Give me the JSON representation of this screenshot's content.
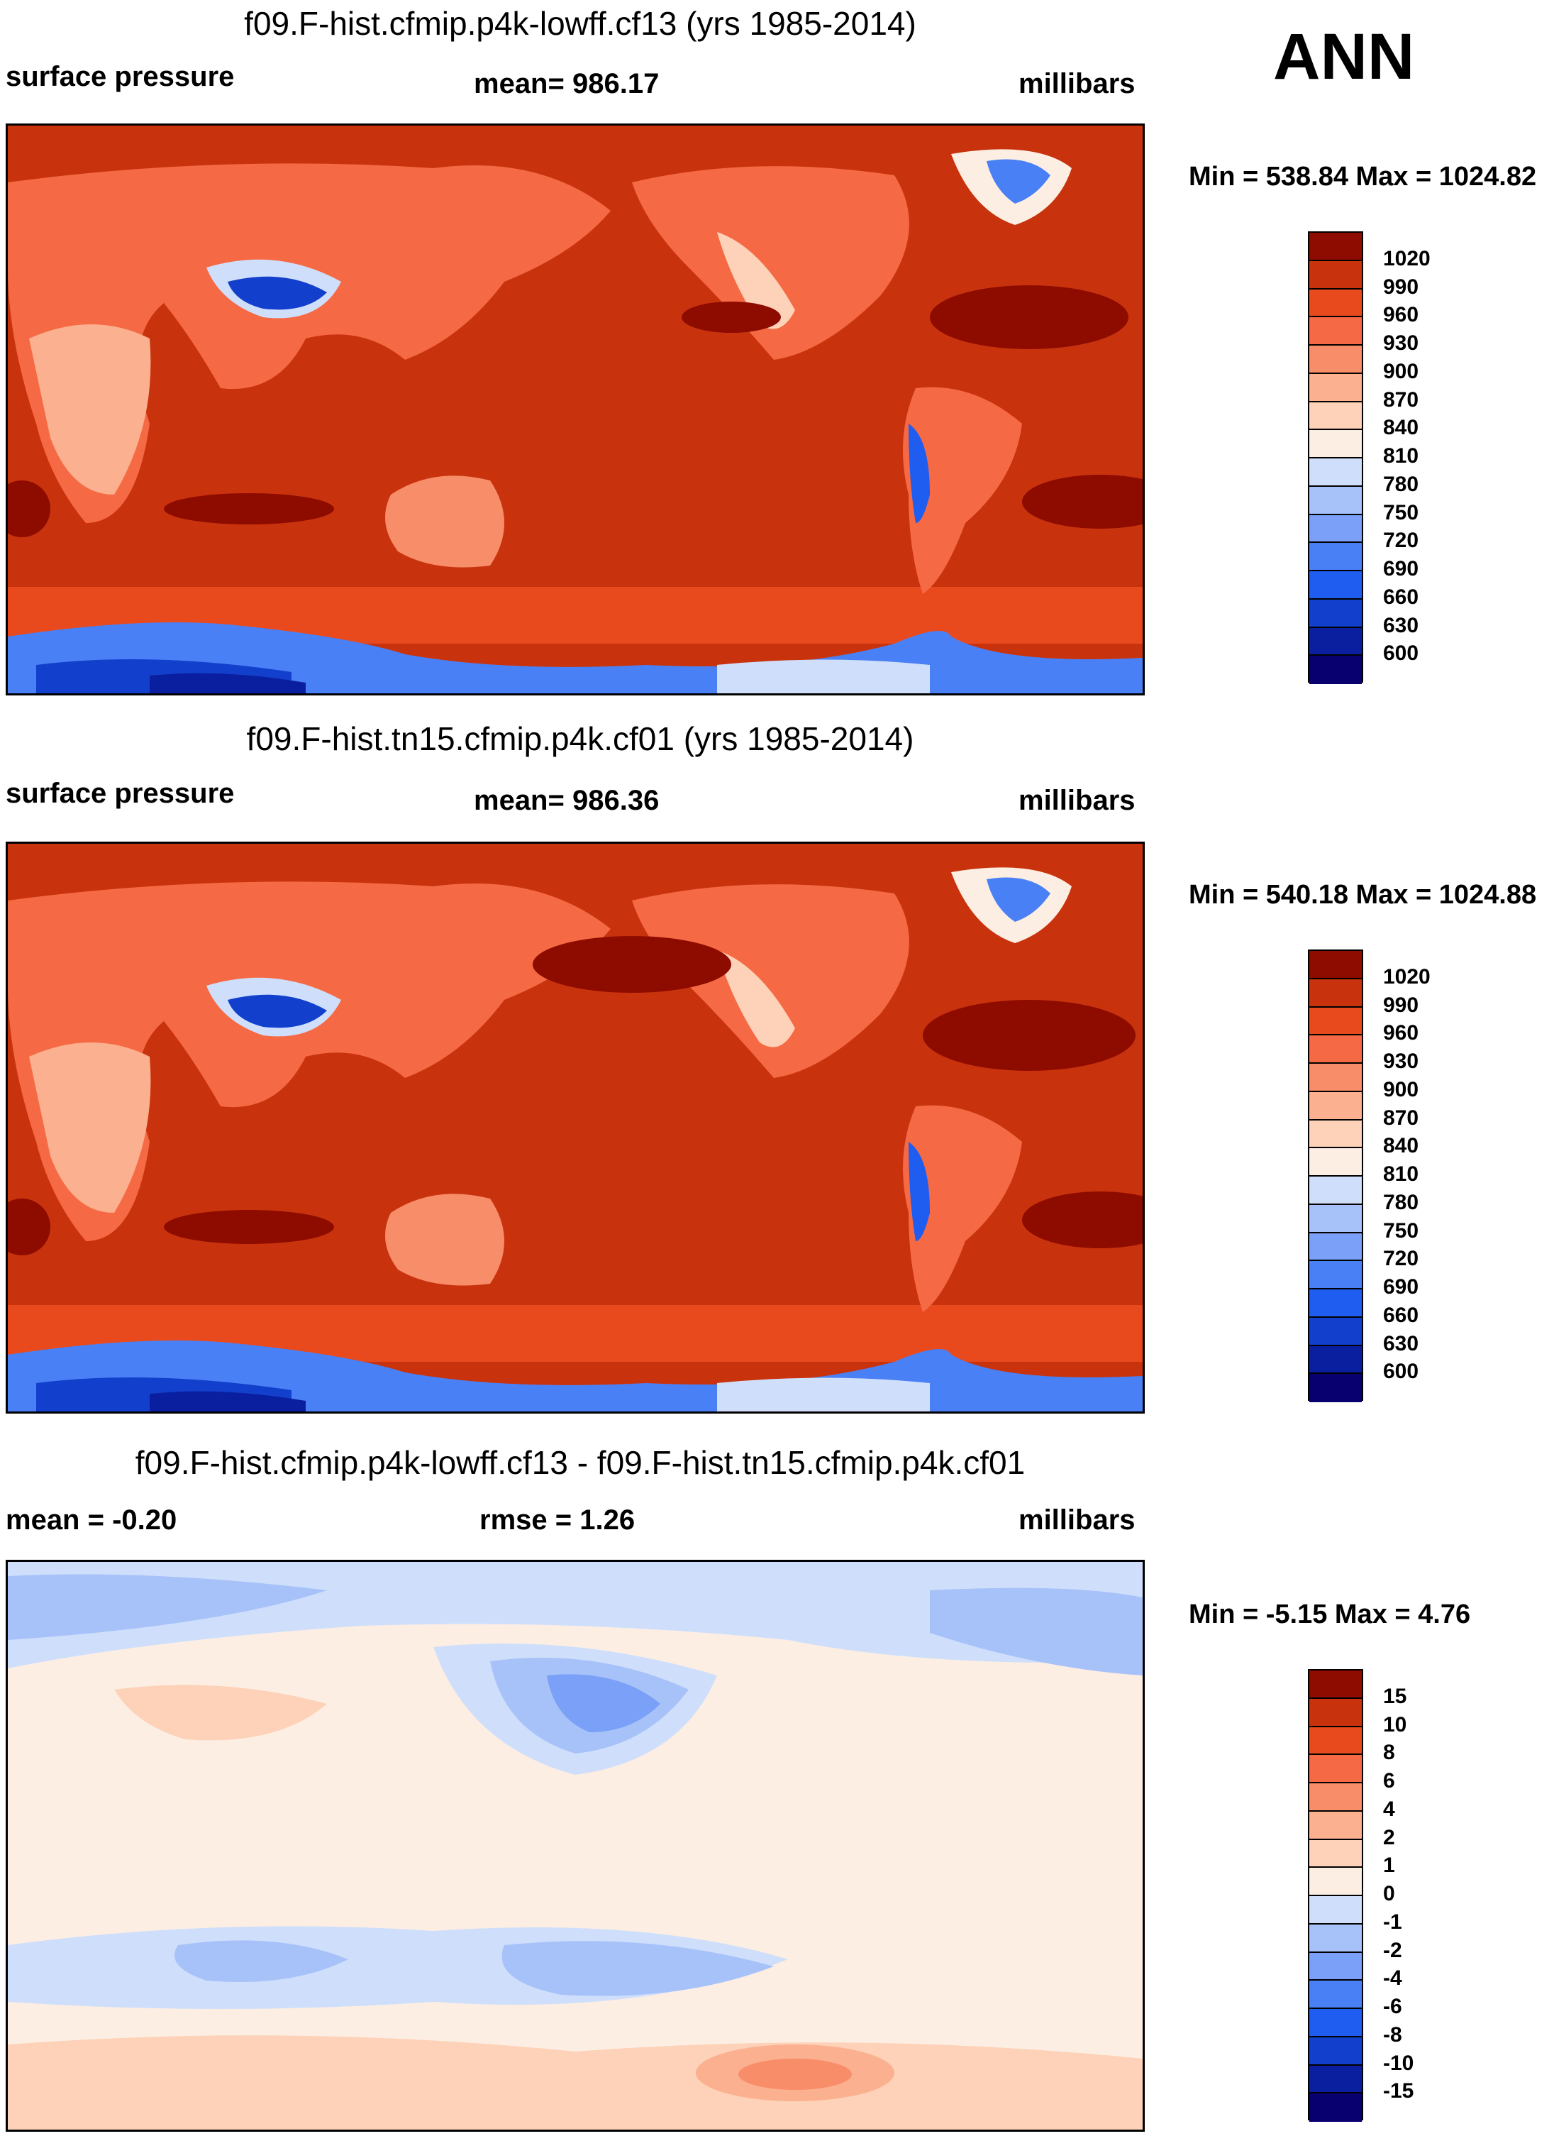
{
  "season": "ANN",
  "colors": {
    "abs_scale": [
      "#08006e",
      "#0a1fa0",
      "#1240cc",
      "#1f5cf0",
      "#4a80f5",
      "#7aa0f7",
      "#a7c2f9",
      "#cfdffb",
      "#fdeee3",
      "#fdd2b8",
      "#fbb08f",
      "#f88d69",
      "#f56a44",
      "#e84a1e",
      "#c8330d",
      "#8e0b00"
    ],
    "diff_scale": [
      "#08006e",
      "#0a1fa0",
      "#1240cc",
      "#1f5cf0",
      "#4a80f5",
      "#7aa0f7",
      "#a7c2f9",
      "#cfdffb",
      "#fdeee3",
      "#fdd2b8",
      "#fbb08f",
      "#f88d69",
      "#f56a44",
      "#e84a1e",
      "#c8330d",
      "#8e0b00"
    ]
  },
  "chart_data": [
    {
      "type": "heatmap",
      "title": "f09.F-hist.cfmip.p4k-lowff.cf13 (yrs 1985-2014)",
      "variable": "surface pressure",
      "mean_label": "mean= 986.17",
      "units": "millibars",
      "minmax_label": "Min = 538.84 Max = 1024.82",
      "min": 538.84,
      "max": 1024.82,
      "mean": 986.17,
      "colorbar_ticks": [
        "1020",
        "990",
        "960",
        "930",
        "900",
        "870",
        "840",
        "810",
        "780",
        "750",
        "720",
        "690",
        "660",
        "630",
        "600"
      ]
    },
    {
      "type": "heatmap",
      "title": "f09.F-hist.tn15.cfmip.p4k.cf01 (yrs 1985-2014)",
      "variable": "surface pressure",
      "mean_label": "mean= 986.36",
      "units": "millibars",
      "minmax_label": "Min = 540.18 Max = 1024.88",
      "min": 540.18,
      "max": 1024.88,
      "mean": 986.36,
      "colorbar_ticks": [
        "1020",
        "990",
        "960",
        "930",
        "900",
        "870",
        "840",
        "810",
        "780",
        "750",
        "720",
        "690",
        "660",
        "630",
        "600"
      ]
    },
    {
      "type": "heatmap",
      "title": "f09.F-hist.cfmip.p4k-lowff.cf13 - f09.F-hist.tn15.cfmip.p4k.cf01",
      "variable": "mean =  -0.20",
      "rmse_label": "rmse =   1.26",
      "units": "millibars",
      "minmax_label": "Min =  -5.15 Max =   4.76",
      "min": -5.15,
      "max": 4.76,
      "mean": -0.2,
      "rmse": 1.26,
      "colorbar_ticks": [
        "15",
        "10",
        "8",
        "6",
        "4",
        "2",
        "1",
        "0",
        "-1",
        "-2",
        "-4",
        "-6",
        "-8",
        "-10",
        "-15"
      ]
    }
  ]
}
